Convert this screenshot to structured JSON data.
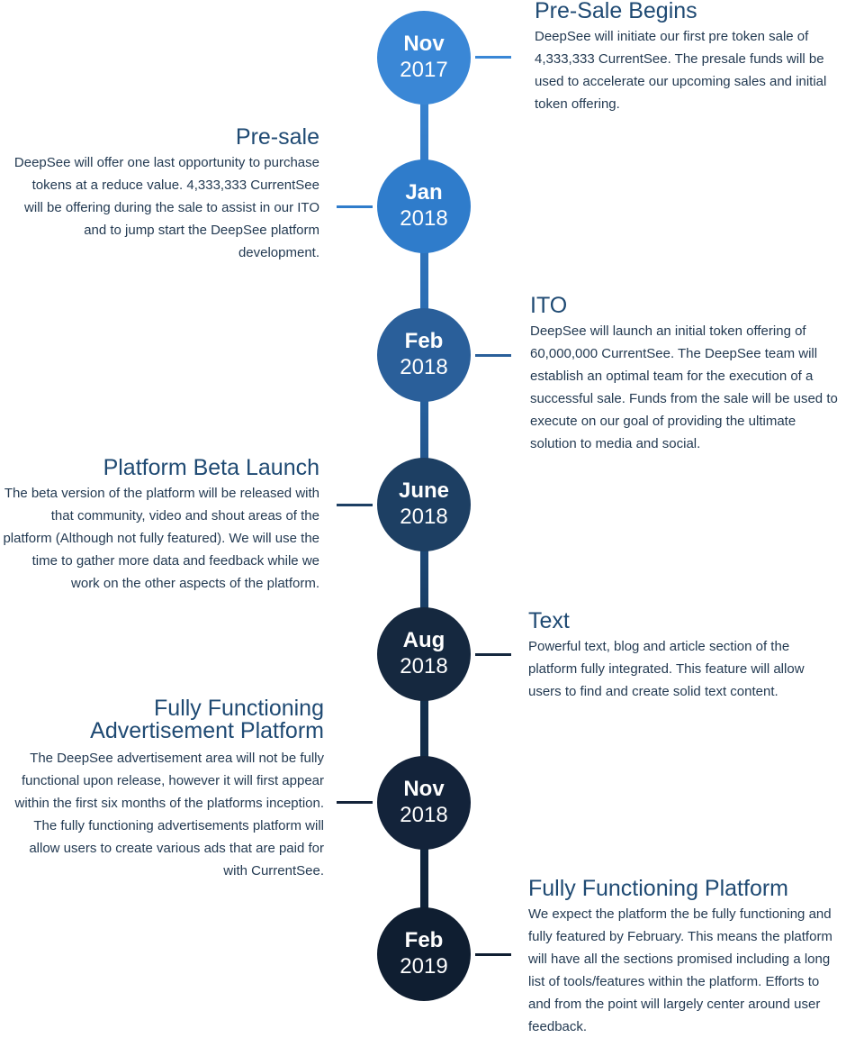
{
  "colors": {
    "node_1": "#3a87d6",
    "node_2": "#2f7ccb",
    "node_3": "#2a5f9a",
    "node_4": "#1d3f63",
    "node_5": "#15283f",
    "node_6": "#13233a",
    "node_7": "#0f1e31",
    "title_text": "#1f4a73",
    "body_text": "#233a52"
  },
  "milestones": [
    {
      "month": "Nov",
      "year": "2017",
      "side": "right",
      "title": "Pre-Sale Begins",
      "description": "DeepSee will initiate our first pre token sale of 4,333,333 CurrentSee. The presale funds will be used to accelerate our upcoming sales and initial token offering."
    },
    {
      "month": "Jan",
      "year": "2018",
      "side": "left",
      "title": "Pre-sale",
      "description": "DeepSee will offer one last opportunity to purchase tokens at a reduce value. 4,333,333 CurrentSee will be offering during the sale to assist in our ITO and to jump start the DeepSee platform development."
    },
    {
      "month": "Feb",
      "year": "2018",
      "side": "right",
      "title": "ITO",
      "description": "DeepSee will launch an initial token offering of 60,000,000 CurrentSee. The DeepSee team will establish an optimal team for the execution of a successful sale. Funds from the sale will be used to execute on our goal of providing the ultimate solution to media and social."
    },
    {
      "month": "June",
      "year": "2018",
      "side": "left",
      "title": "Platform Beta Launch",
      "description": "The beta version of the platform will be released with that community, video and shout areas of the platform (Although not fully featured). We will use the time to gather more data and feedback while we work on the other aspects of the platform."
    },
    {
      "month": "Aug",
      "year": "2018",
      "side": "right",
      "title": "Text",
      "description": "Powerful text, blog and article section of the platform fully integrated. This feature will allow users to find and create solid text content."
    },
    {
      "month": "Nov",
      "year": "2018",
      "side": "left",
      "title": "Fully Functioning Advertisement Platform",
      "description": "The DeepSee advertisement area will not be fully functional upon release, however it will first appear within the first six months of the platforms inception. The fully functioning advertisements platform will allow users to create various ads that are paid for with CurrentSee."
    },
    {
      "month": "Feb",
      "year": "2019",
      "side": "right",
      "title": "Fully Functioning Platform",
      "description": "We expect the platform the be fully functioning and fully featured by February. This means the platform will have all the sections promised including a long list of tools/features within the platform. Efforts to and from the point will largely center around user feedback."
    }
  ]
}
